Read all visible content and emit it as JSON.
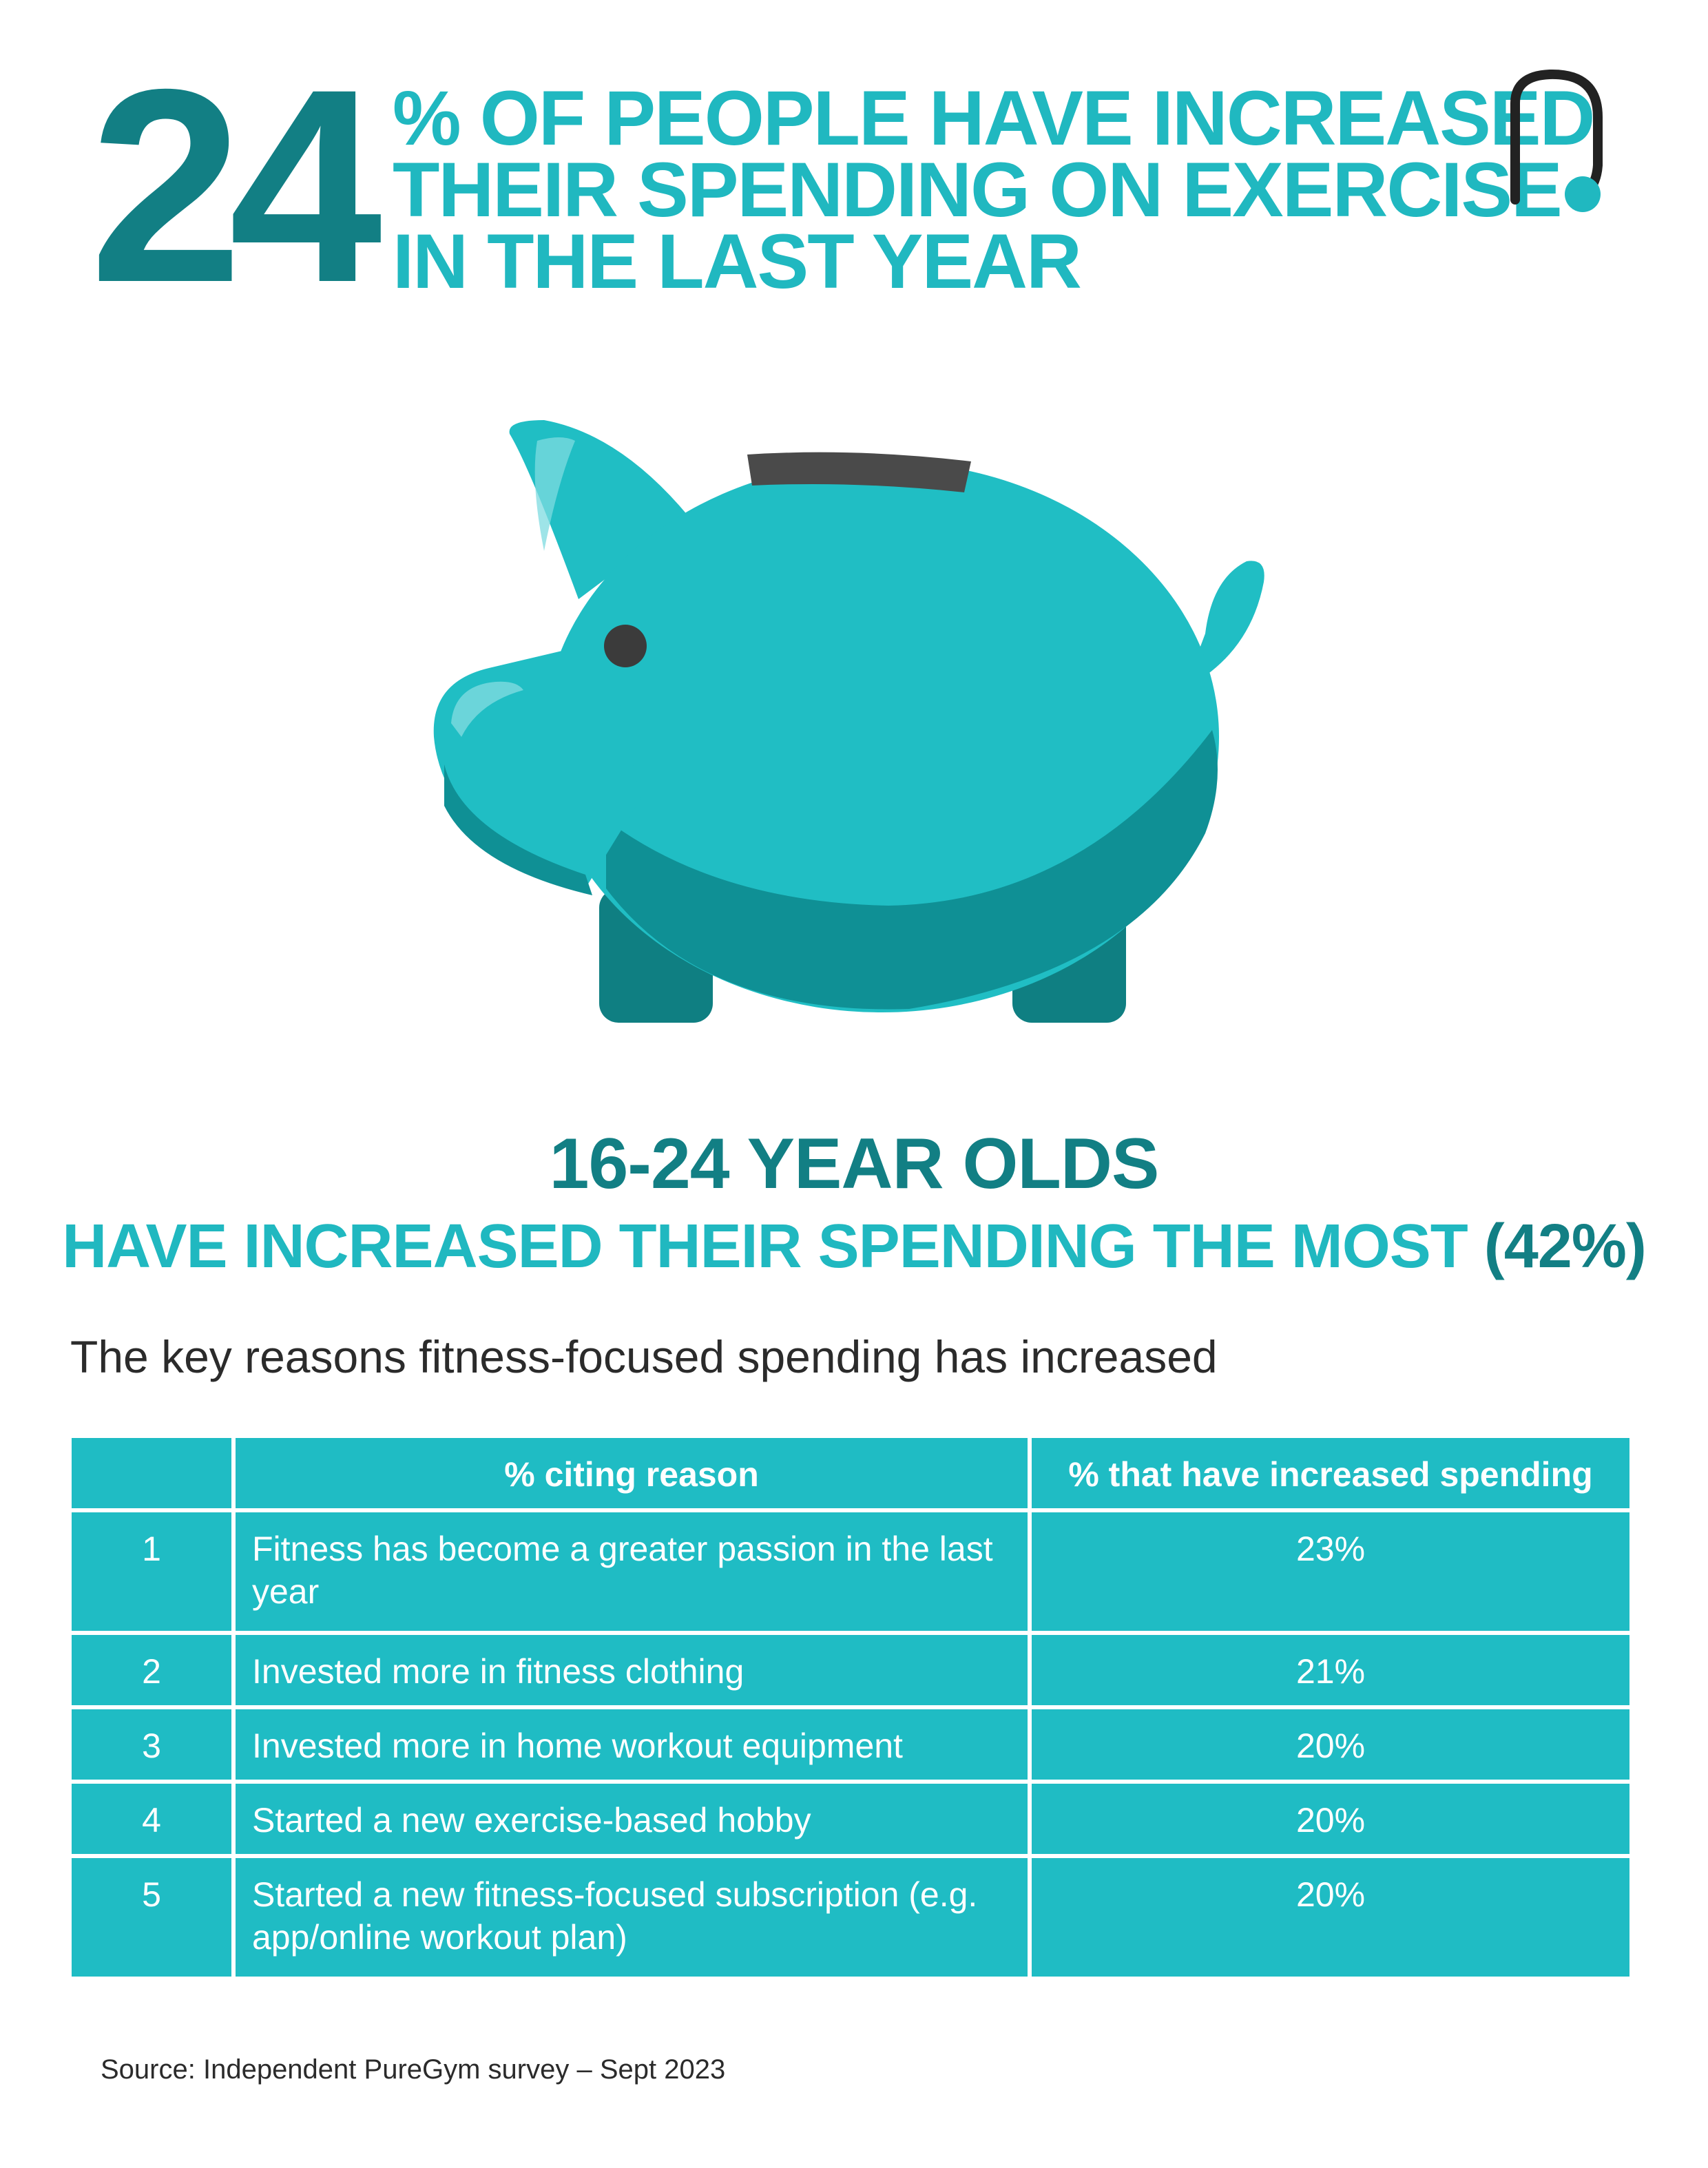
{
  "headline": {
    "number": "24",
    "lines": [
      "% OF PEOPLE HAVE INCREASED",
      "THEIR SPENDING ON EXERCISE",
      "IN THE LAST YEAR"
    ]
  },
  "logo": {
    "icon": "puregym-logo-icon",
    "accent": "#20b8c0"
  },
  "illustration": {
    "icon": "piggy-bank-icon"
  },
  "subheading": {
    "line1": "16-24 YEAR OLDS",
    "line2": "HAVE INCREASED THEIR SPENDING THE MOST",
    "line2_highlight": "(42%)"
  },
  "intro": "The key reasons fitness-focused spending has increased",
  "table": {
    "headers": [
      "",
      "% citing reason",
      "% that have increased spending"
    ],
    "rows": [
      {
        "rank": "1",
        "reason": "Fitness has become a greater passion in the last year",
        "percent": "23%"
      },
      {
        "rank": "2",
        "reason": "Invested more in fitness clothing",
        "percent": "21%"
      },
      {
        "rank": "3",
        "reason": "Invested more in home workout equipment",
        "percent": "20%"
      },
      {
        "rank": "4",
        "reason": "Started a new exercise-based hobby",
        "percent": "20%"
      },
      {
        "rank": "5",
        "reason": "Started a new fitness-focused subscription (e.g. app/online workout plan)",
        "percent": "20%"
      }
    ]
  },
  "source": "Source: Independent PureGym survey – Sept 2023",
  "colors": {
    "dark_teal": "#127f84",
    "teal": "#20b8c0",
    "table_bg": "#1fbcc4"
  }
}
